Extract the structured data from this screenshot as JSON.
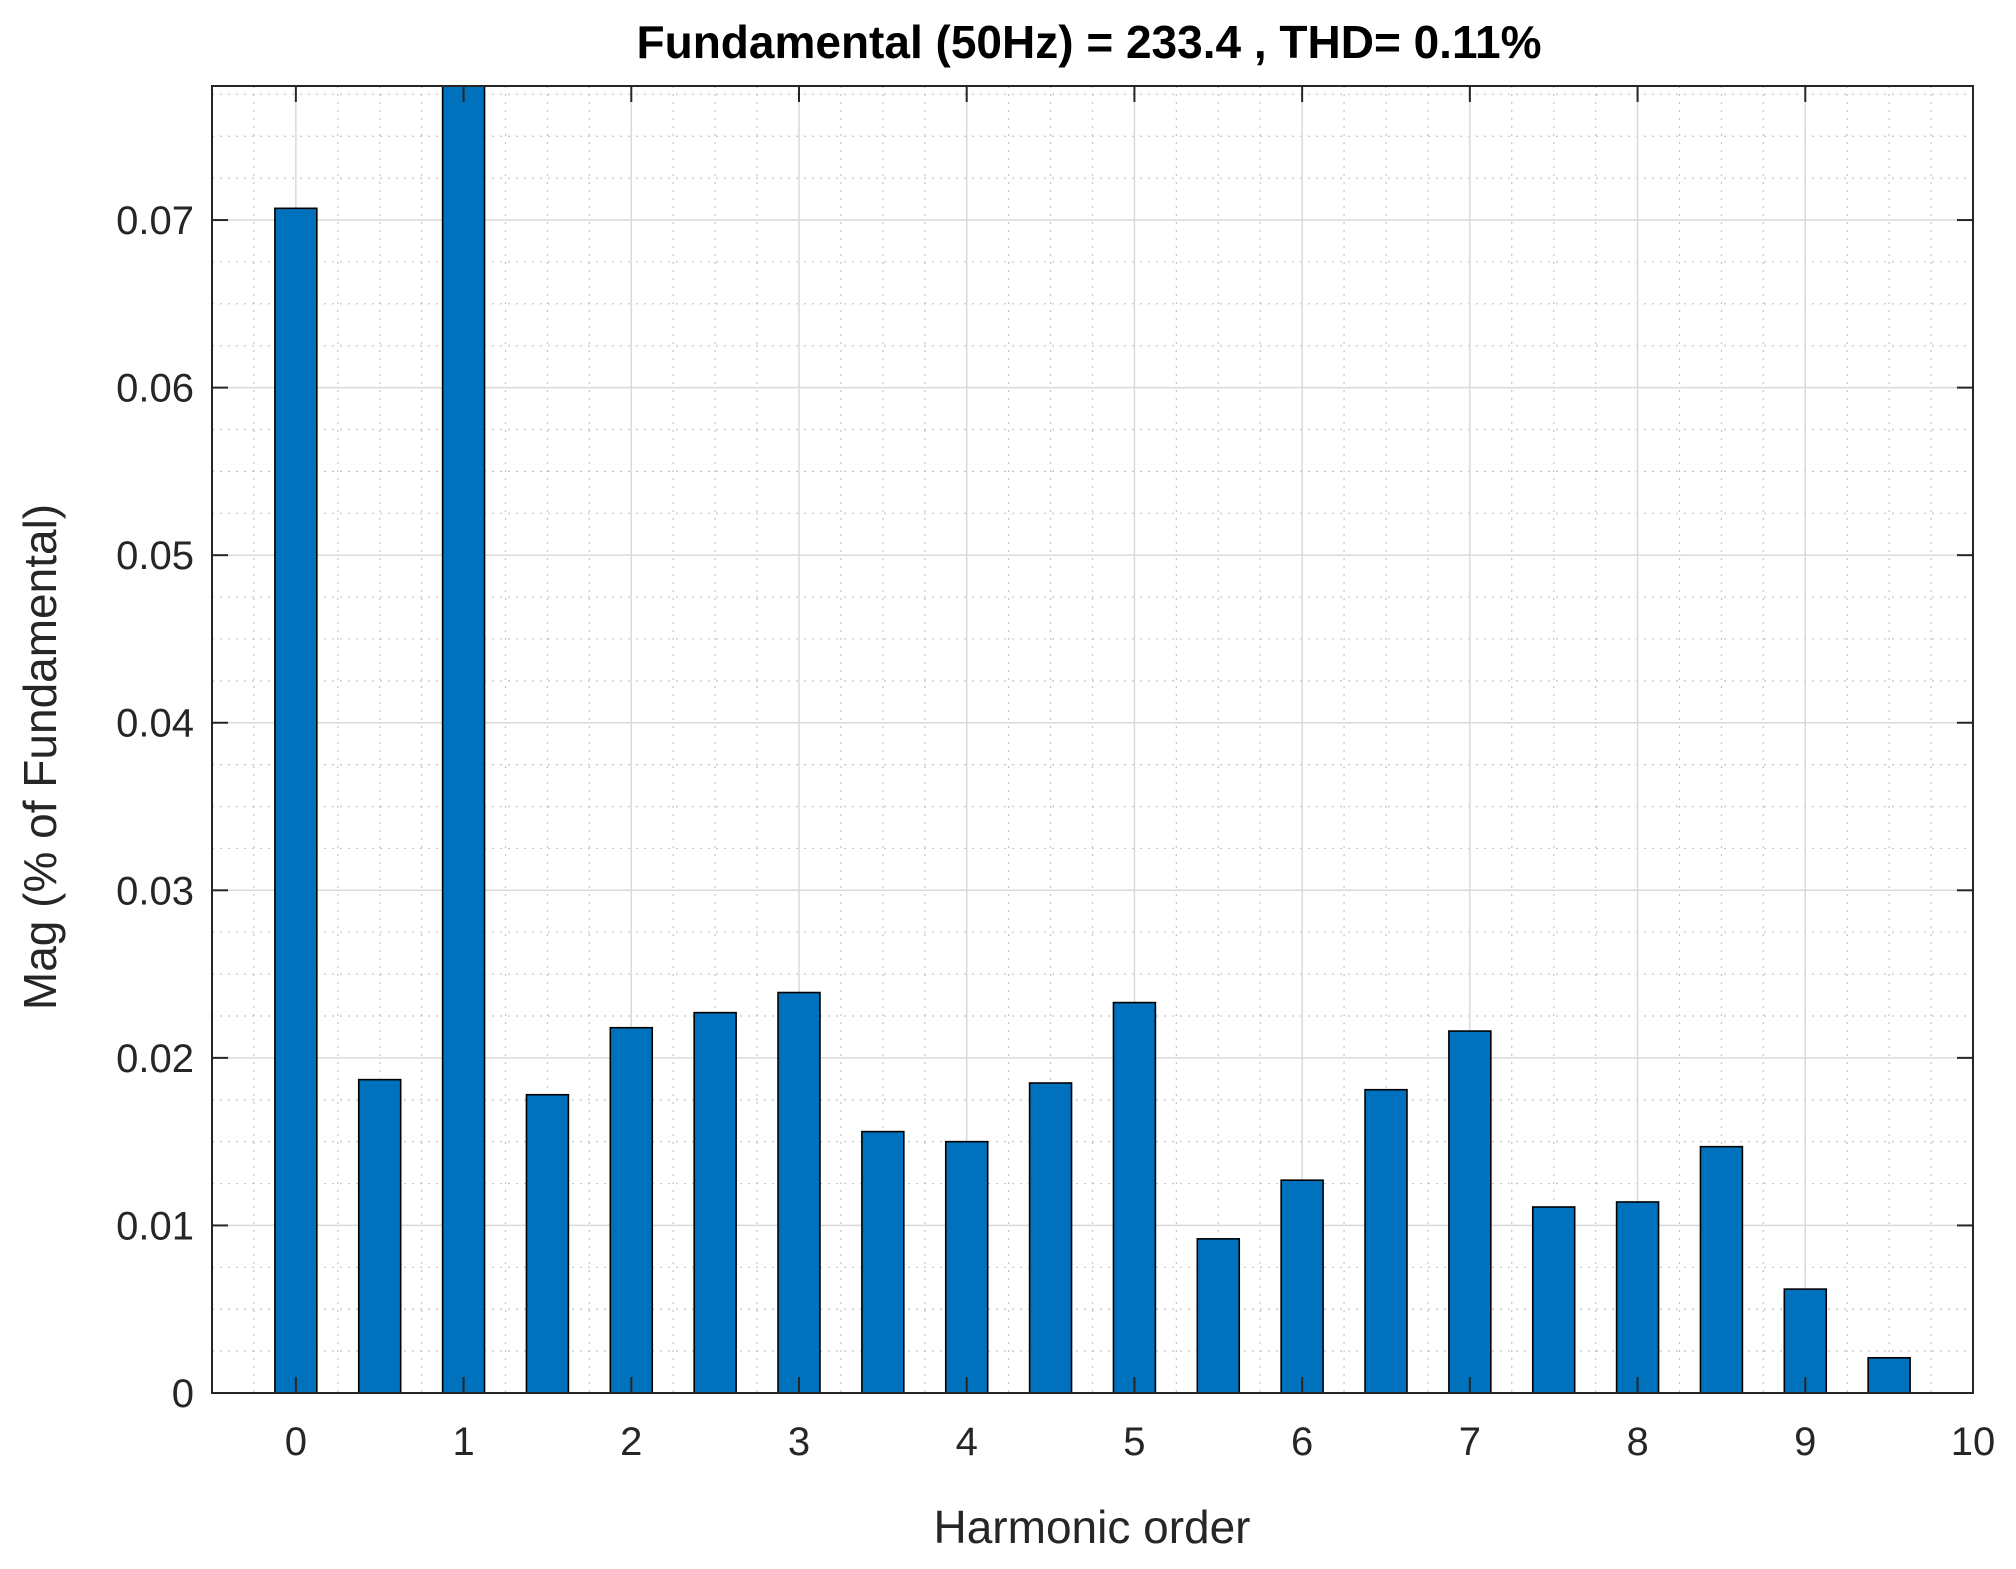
{
  "chart_data": {
    "type": "bar",
    "title": "Fundamental (50Hz) = 233.4 , THD= 0.11%",
    "xlabel": "Harmonic order",
    "ylabel": "Mag (% of Fundamental)",
    "xlim": [
      -0.5,
      10
    ],
    "ylim": [
      0,
      0.078
    ],
    "xticks": [
      0,
      1,
      2,
      3,
      4,
      5,
      6,
      7,
      8,
      9,
      10
    ],
    "xtick_labels": [
      "0",
      "1",
      "2",
      "3",
      "4",
      "5",
      "6",
      "7",
      "8",
      "9",
      "10"
    ],
    "yticks": [
      0,
      0.01,
      0.02,
      0.03,
      0.04,
      0.05,
      0.06,
      0.07
    ],
    "ytick_labels": [
      "0",
      "0.01",
      "0.02",
      "0.03",
      "0.04",
      "0.05",
      "0.06",
      "0.07"
    ],
    "bar_color": "#0072bd",
    "grid": "on (major + minor)",
    "x": [
      0,
      0.5,
      1,
      1.5,
      2,
      2.5,
      3,
      3.5,
      4,
      4.5,
      5,
      5.5,
      6,
      6.5,
      7,
      7.5,
      8,
      8.5,
      9,
      9.5
    ],
    "values": [
      0.0707,
      0.0187,
      0.078,
      0.0178,
      0.0218,
      0.0227,
      0.0239,
      0.0156,
      0.015,
      0.0185,
      0.0233,
      0.0092,
      0.0127,
      0.0181,
      0.0216,
      0.0111,
      0.0114,
      0.0147,
      0.0062,
      0.0021
    ]
  }
}
